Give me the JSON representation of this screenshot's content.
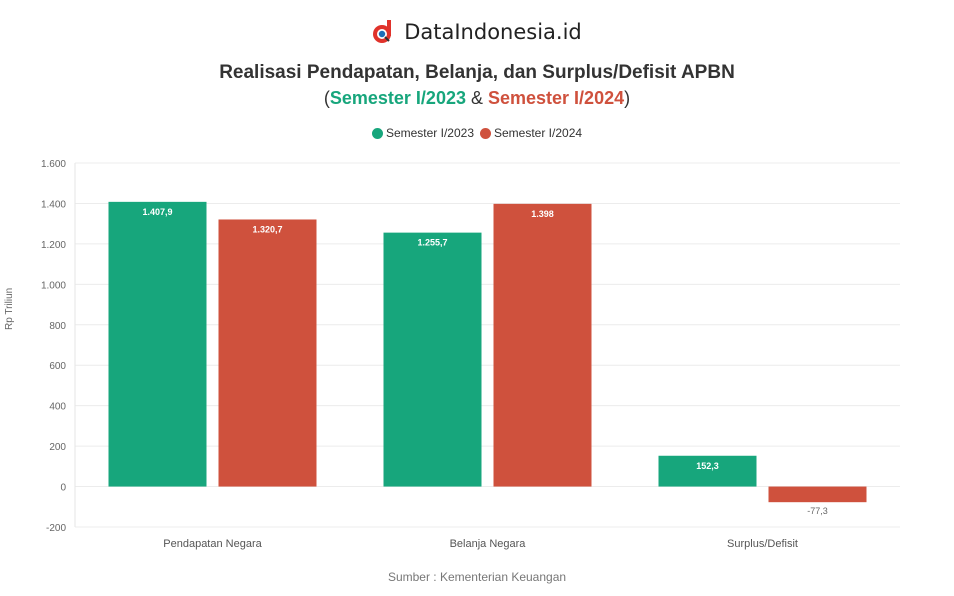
{
  "brand": {
    "name": "DataIndonesia.id",
    "logo_color": "#e0322b"
  },
  "title": "Realisasi Pendapatan, Belanja, dan Surplus/Defisit APBN",
  "subtitle": {
    "open": "(",
    "s1": "Semester I/2023",
    "amp": " & ",
    "s2": "Semester I/2024",
    "close": ")"
  },
  "colors": {
    "s2023": "#17a67c",
    "s2024": "#cf513d"
  },
  "legend": [
    "Semester I/2023",
    "Semester I/2024"
  ],
  "source": "Sumber : Kementerian Keuangan",
  "chart_data": {
    "type": "bar",
    "title": "Realisasi Pendapatan, Belanja, dan Surplus/Defisit APBN",
    "subtitle": "(Semester I/2023 & Semester I/2024)",
    "categories": [
      "Pendapatan Negara",
      "Belanja Negara",
      "Surplus/Defisit"
    ],
    "series": [
      {
        "name": "Semester I/2023",
        "values": [
          1407.9,
          1255.7,
          152.3
        ],
        "labels": [
          "1.407,9",
          "1.255,7",
          "152,3"
        ]
      },
      {
        "name": "Semester I/2024",
        "values": [
          1320.7,
          1398.0,
          -77.3
        ],
        "labels": [
          "1.320,7",
          "1.398",
          "-77,3"
        ]
      }
    ],
    "xlabel": "",
    "ylabel": "Rp Triliun",
    "ylim": [
      -200,
      1600
    ],
    "yticks": [
      -200,
      0,
      200,
      400,
      600,
      800,
      1000,
      1200,
      1400,
      1600
    ],
    "ytick_labels": [
      "-200",
      "0",
      "200",
      "400",
      "600",
      "800",
      "1.000",
      "1.200",
      "1.400",
      "1.600"
    ],
    "grid": true,
    "legend_position": "top"
  }
}
